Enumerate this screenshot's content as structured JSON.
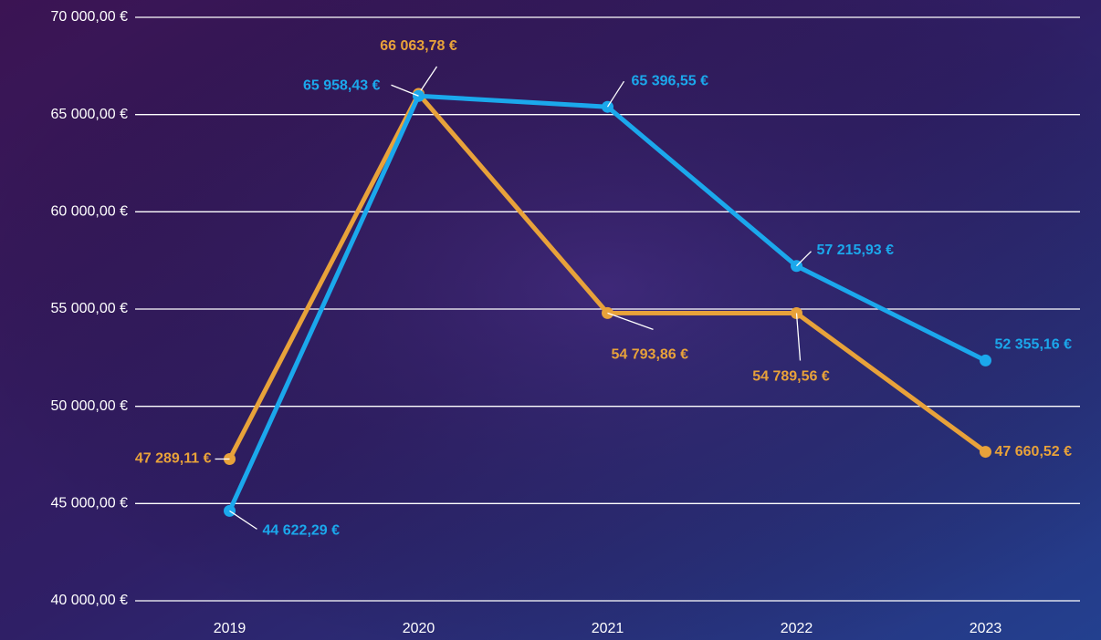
{
  "chart_data": {
    "type": "line",
    "categories": [
      "2019",
      "2020",
      "2021",
      "2022",
      "2023"
    ],
    "series": [
      {
        "color": "#e8a23a",
        "values": [
          47289.11,
          66063.78,
          54793.86,
          54789.56,
          47660.52
        ],
        "value_labels": [
          "47 289,11 €",
          "66 063,78 €",
          "54 793,86 €",
          "54 789,56 €",
          "47 660,52 €"
        ]
      },
      {
        "color": "#1ba8ec",
        "values": [
          44622.29,
          65958.43,
          65396.55,
          57215.93,
          52355.16
        ],
        "value_labels": [
          "44 622,29 €",
          "65 958,43 €",
          "65 396,55 €",
          "57 215,93 €",
          "52 355,16 €"
        ]
      }
    ],
    "ylim": [
      40000,
      70000
    ],
    "yticks": [
      {
        "value": 40000,
        "label": "40 000,00 €"
      },
      {
        "value": 45000,
        "label": "45 000,00 €"
      },
      {
        "value": 50000,
        "label": "50 000,00 €"
      },
      {
        "value": 55000,
        "label": "55 000,00 €"
      },
      {
        "value": 60000,
        "label": "60 000,00 €"
      },
      {
        "value": 65000,
        "label": "65 000,00 €"
      },
      {
        "value": 70000,
        "label": "70 000,00 €"
      }
    ],
    "grid": true
  }
}
